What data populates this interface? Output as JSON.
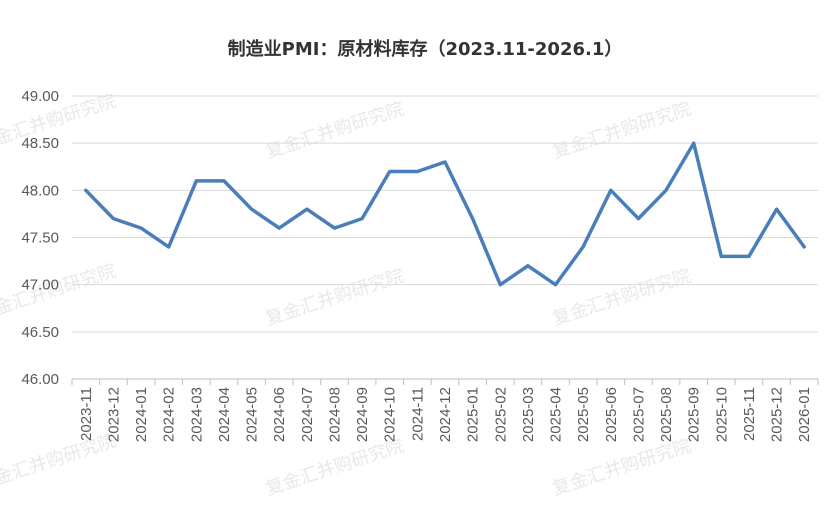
{
  "watermark": "复金汇并购研究院",
  "chart_data": {
    "type": "line",
    "title": "制造业PMI：原材料库存（2023.11-2026.1）",
    "categories": [
      "2023-11",
      "2023-12",
      "2024-01",
      "2024-02",
      "2024-03",
      "2024-04",
      "2024-05",
      "2024-06",
      "2024-07",
      "2024-08",
      "2024-09",
      "2024-10",
      "2024-11",
      "2024-12",
      "2025-01",
      "2025-02",
      "2025-03",
      "2025-04",
      "2025-05",
      "2025-06",
      "2025-07",
      "2025-08",
      "2025-09",
      "2025-10",
      "2025-11",
      "2025-12",
      "2026-01"
    ],
    "series": [
      {
        "values": [
          48.0,
          47.7,
          47.6,
          47.4,
          48.1,
          48.1,
          47.8,
          47.6,
          47.8,
          47.6,
          47.7,
          48.2,
          48.2,
          48.3,
          47.7,
          47.0,
          47.2,
          47.0,
          47.4,
          48.0,
          47.7,
          48.0,
          48.5,
          47.3,
          47.3,
          47.8,
          47.4
        ]
      }
    ],
    "yticks": [
      "46.00",
      "46.50",
      "47.00",
      "47.50",
      "48.00",
      "48.50",
      "49.00"
    ],
    "ylim": [
      46.0,
      49.0
    ],
    "grid": true,
    "line_color": "#4a7ebb",
    "grid_color": "#d9d9d9"
  }
}
